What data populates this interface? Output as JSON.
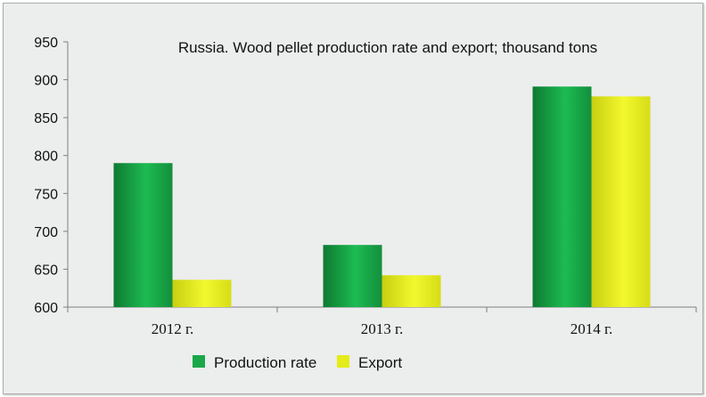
{
  "chart_data": {
    "type": "bar",
    "title": "Russia. Wood pellet production rate and export; thousand tons",
    "categories": [
      "2012 г.",
      "2013 г.",
      "2014 г."
    ],
    "series": [
      {
        "name": "Production rate",
        "values": [
          790,
          682,
          891
        ],
        "color": "#1aa84a"
      },
      {
        "name": "Export",
        "values": [
          636,
          642,
          878
        ],
        "color": "#e4ec1a"
      }
    ],
    "ylim": [
      600,
      950
    ],
    "yticks": [
      600,
      650,
      700,
      750,
      800,
      850,
      900,
      950
    ],
    "grid": false,
    "legend": "bottom"
  }
}
